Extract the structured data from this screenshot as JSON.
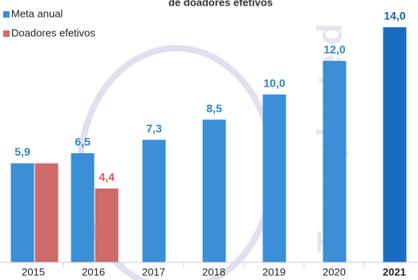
{
  "chart_data": {
    "type": "bar",
    "title": "de doadores efetivos",
    "watermark": "Transplante d",
    "categories": [
      "2015",
      "2016",
      "2017",
      "2018",
      "2019",
      "2020",
      "2021"
    ],
    "series": [
      {
        "name": "Meta anual",
        "color": "#3a8fd6",
        "values": [
          5.9,
          6.5,
          7.3,
          8.5,
          10.0,
          12.0,
          14.0
        ],
        "value_labels": [
          "5,9",
          "6,5",
          "7,3",
          "8,5",
          "10,0",
          "12,0",
          "14,0"
        ]
      },
      {
        "name": "Doadores efetivos",
        "color": "#cd6b6b",
        "values": [
          5.9,
          4.4,
          null,
          null,
          null,
          null,
          null
        ],
        "value_labels": [
          null,
          "4,4",
          null,
          null,
          null,
          null,
          null
        ]
      }
    ],
    "ylim": [
      0,
      14
    ],
    "legend": "top-left"
  }
}
